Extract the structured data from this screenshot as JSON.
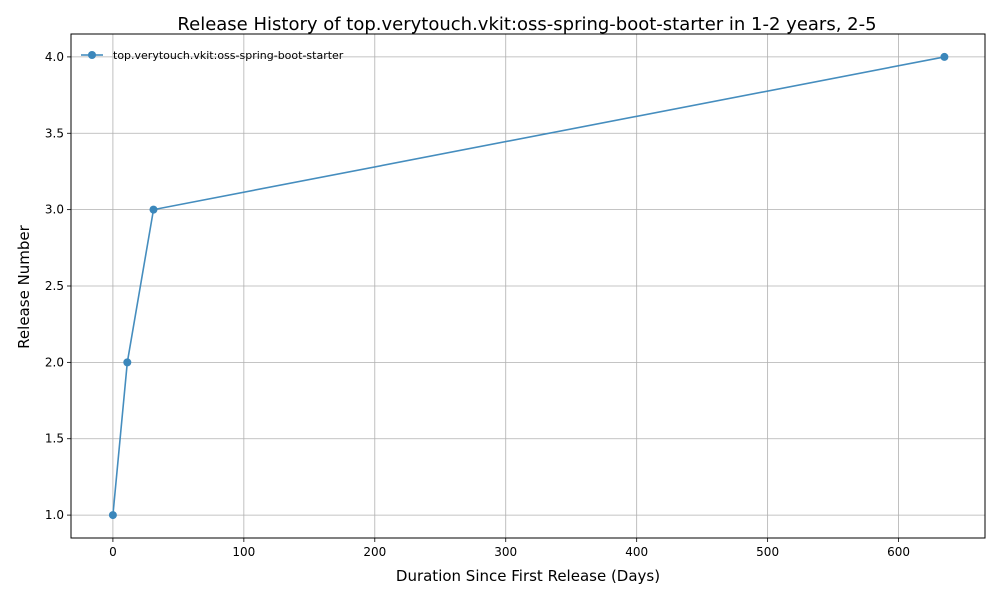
{
  "chart_data": {
    "type": "line",
    "title": "Release History of top.verytouch.vkit:oss-spring-boot-starter in 1-2 years, 2-5",
    "xlabel": "Duration Since First Release (Days)",
    "ylabel": "Release Number",
    "xlim": [
      -32,
      666
    ],
    "ylim": [
      0.85,
      4.15
    ],
    "x_ticks": [
      0,
      100,
      200,
      300,
      400,
      500,
      600
    ],
    "y_ticks": [
      1.0,
      1.5,
      2.0,
      2.5,
      3.0,
      3.5,
      4.0
    ],
    "x_tick_labels": [
      "0",
      "100",
      "200",
      "300",
      "400",
      "500",
      "600"
    ],
    "y_tick_labels": [
      "1.0",
      "1.5",
      "2.0",
      "2.5",
      "3.0",
      "3.5",
      "4.0"
    ],
    "grid": true,
    "legend_position": "top-left",
    "series": [
      {
        "name": "top.verytouch.vkit:oss-spring-boot-starter",
        "color": "#3b87bb",
        "marker": "circle",
        "x": [
          0,
          11,
          31,
          635
        ],
        "y": [
          1,
          2,
          3,
          4
        ]
      }
    ]
  }
}
